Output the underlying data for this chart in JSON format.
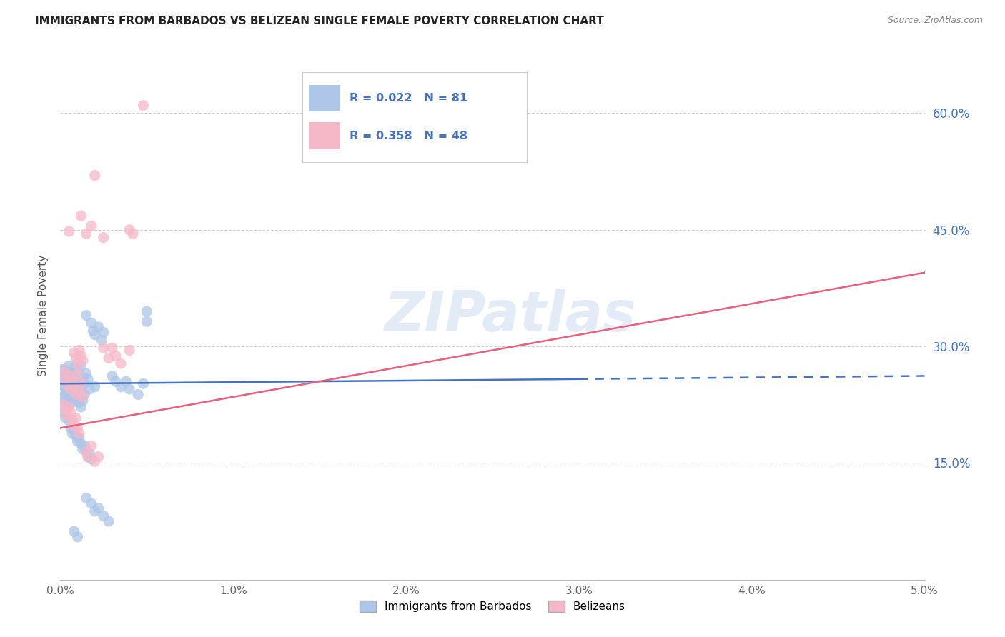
{
  "title": "IMMIGRANTS FROM BARBADOS VS BELIZEAN SINGLE FEMALE POVERTY CORRELATION CHART",
  "source": "Source: ZipAtlas.com",
  "ylabel": "Single Female Poverty",
  "series": [
    {
      "name": "Immigrants from Barbados",
      "R": 0.022,
      "N": 81,
      "color": "#aec6e8",
      "line_color": "#4472c4",
      "line_style": "solid"
    },
    {
      "name": "Belizeans",
      "R": 0.358,
      "N": 48,
      "color": "#f5b8c8",
      "line_color": "#e8607a",
      "line_style": "solid"
    }
  ],
  "xlim": [
    0.0,
    0.05
  ],
  "ylim": [
    0.0,
    0.68
  ],
  "yticks_right": [
    0.15,
    0.3,
    0.45,
    0.6
  ],
  "ytick_labels_right": [
    "15.0%",
    "30.0%",
    "45.0%",
    "60.0%"
  ],
  "xtick_vals": [
    0.0,
    0.01,
    0.02,
    0.03,
    0.04,
    0.05
  ],
  "xtick_labels": [
    "0.0%",
    "1.0%",
    "2.0%",
    "3.0%",
    "4.0%",
    "5.0%"
  ],
  "watermark": "ZIPatlas",
  "background_color": "#ffffff",
  "blue_line": {
    "x0": 0.0,
    "y0": 0.252,
    "x1_solid": 0.03,
    "y1_solid": 0.258,
    "x1_dash": 0.05,
    "y1_dash": 0.262
  },
  "pink_line": {
    "x0": 0.0,
    "y0": 0.195,
    "x1": 0.05,
    "y1": 0.395
  },
  "blue_dots": [
    [
      0.0002,
      0.27
    ],
    [
      0.0003,
      0.262
    ],
    [
      0.0004,
      0.255
    ],
    [
      0.0005,
      0.275
    ],
    [
      0.0006,
      0.248
    ],
    [
      0.0006,
      0.26
    ],
    [
      0.0007,
      0.265
    ],
    [
      0.0008,
      0.272
    ],
    [
      0.0008,
      0.258
    ],
    [
      0.0009,
      0.245
    ],
    [
      0.001,
      0.268
    ],
    [
      0.001,
      0.255
    ],
    [
      0.0011,
      0.25
    ],
    [
      0.0012,
      0.242
    ],
    [
      0.0012,
      0.275
    ],
    [
      0.0013,
      0.26
    ],
    [
      0.0014,
      0.252
    ],
    [
      0.0015,
      0.265
    ],
    [
      0.0015,
      0.34
    ],
    [
      0.0016,
      0.258
    ],
    [
      0.0017,
      0.245
    ],
    [
      0.0018,
      0.33
    ],
    [
      0.0019,
      0.32
    ],
    [
      0.002,
      0.248
    ],
    [
      0.0003,
      0.238
    ],
    [
      0.0004,
      0.242
    ],
    [
      0.0005,
      0.235
    ],
    [
      0.0006,
      0.23
    ],
    [
      0.0007,
      0.228
    ],
    [
      0.0008,
      0.24
    ],
    [
      0.0009,
      0.232
    ],
    [
      0.001,
      0.236
    ],
    [
      0.0011,
      0.228
    ],
    [
      0.0012,
      0.222
    ],
    [
      0.0013,
      0.23
    ],
    [
      0.0014,
      0.238
    ],
    [
      0.0005,
      0.205
    ],
    [
      0.0006,
      0.195
    ],
    [
      0.0007,
      0.188
    ],
    [
      0.0008,
      0.192
    ],
    [
      0.0009,
      0.185
    ],
    [
      0.001,
      0.178
    ],
    [
      0.0011,
      0.182
    ],
    [
      0.0012,
      0.175
    ],
    [
      0.0013,
      0.168
    ],
    [
      0.0014,
      0.172
    ],
    [
      0.0015,
      0.165
    ],
    [
      0.0016,
      0.158
    ],
    [
      0.0017,
      0.162
    ],
    [
      0.0018,
      0.155
    ],
    [
      0.0002,
      0.215
    ],
    [
      0.0003,
      0.208
    ],
    [
      0.0004,
      0.22
    ],
    [
      0.0005,
      0.225
    ],
    [
      0.0001,
      0.25
    ],
    [
      0.0002,
      0.258
    ],
    [
      0.0003,
      0.245
    ],
    [
      0.0001,
      0.235
    ],
    [
      0.0002,
      0.228
    ],
    [
      0.0001,
      0.27
    ],
    [
      0.002,
      0.315
    ],
    [
      0.0022,
      0.325
    ],
    [
      0.0024,
      0.308
    ],
    [
      0.0025,
      0.318
    ],
    [
      0.0015,
      0.105
    ],
    [
      0.0018,
      0.098
    ],
    [
      0.002,
      0.088
    ],
    [
      0.0022,
      0.092
    ],
    [
      0.0025,
      0.082
    ],
    [
      0.0028,
      0.075
    ],
    [
      0.0008,
      0.062
    ],
    [
      0.001,
      0.055
    ],
    [
      0.003,
      0.262
    ],
    [
      0.0032,
      0.255
    ],
    [
      0.0035,
      0.248
    ],
    [
      0.0038,
      0.255
    ],
    [
      0.004,
      0.245
    ],
    [
      0.0045,
      0.238
    ],
    [
      0.0048,
      0.252
    ],
    [
      0.005,
      0.345
    ],
    [
      0.005,
      0.332
    ]
  ],
  "pink_dots": [
    [
      0.0002,
      0.268
    ],
    [
      0.0003,
      0.258
    ],
    [
      0.0004,
      0.25
    ],
    [
      0.0005,
      0.262
    ],
    [
      0.0006,
      0.245
    ],
    [
      0.0007,
      0.255
    ],
    [
      0.0008,
      0.248
    ],
    [
      0.0009,
      0.238
    ],
    [
      0.001,
      0.265
    ],
    [
      0.0011,
      0.242
    ],
    [
      0.0012,
      0.252
    ],
    [
      0.0013,
      0.235
    ],
    [
      0.0008,
      0.292
    ],
    [
      0.0009,
      0.285
    ],
    [
      0.001,
      0.278
    ],
    [
      0.0011,
      0.295
    ],
    [
      0.0012,
      0.288
    ],
    [
      0.0013,
      0.282
    ],
    [
      0.0002,
      0.225
    ],
    [
      0.0003,
      0.218
    ],
    [
      0.0004,
      0.21
    ],
    [
      0.0005,
      0.222
    ],
    [
      0.0006,
      0.215
    ],
    [
      0.0007,
      0.205
    ],
    [
      0.0008,
      0.198
    ],
    [
      0.0009,
      0.208
    ],
    [
      0.001,
      0.195
    ],
    [
      0.0011,
      0.188
    ],
    [
      0.0015,
      0.165
    ],
    [
      0.0016,
      0.158
    ],
    [
      0.0018,
      0.172
    ],
    [
      0.002,
      0.152
    ],
    [
      0.0022,
      0.158
    ],
    [
      0.0005,
      0.448
    ],
    [
      0.0012,
      0.468
    ],
    [
      0.0015,
      0.445
    ],
    [
      0.0018,
      0.455
    ],
    [
      0.002,
      0.52
    ],
    [
      0.0025,
      0.44
    ],
    [
      0.003,
      0.298
    ],
    [
      0.0032,
      0.288
    ],
    [
      0.0035,
      0.278
    ],
    [
      0.004,
      0.295
    ],
    [
      0.0042,
      0.445
    ],
    [
      0.0025,
      0.298
    ],
    [
      0.0028,
      0.285
    ],
    [
      0.0048,
      0.61
    ],
    [
      0.004,
      0.45
    ]
  ]
}
